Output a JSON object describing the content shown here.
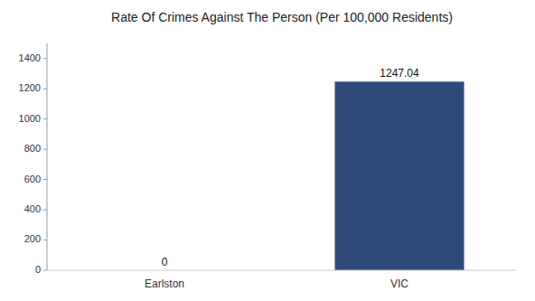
{
  "chart_data": {
    "type": "bar",
    "title": "Rate Of Crimes Against The Person (Per 100,000 Residents)",
    "categories": [
      "Earlston",
      "VIC"
    ],
    "values": [
      0,
      1247.04
    ],
    "color": "#2e4a7a",
    "ylim": [
      0,
      1500
    ],
    "yticks": [
      0,
      200,
      400,
      600,
      800,
      1000,
      1200,
      1400
    ],
    "data_labels": true,
    "grid": false
  }
}
